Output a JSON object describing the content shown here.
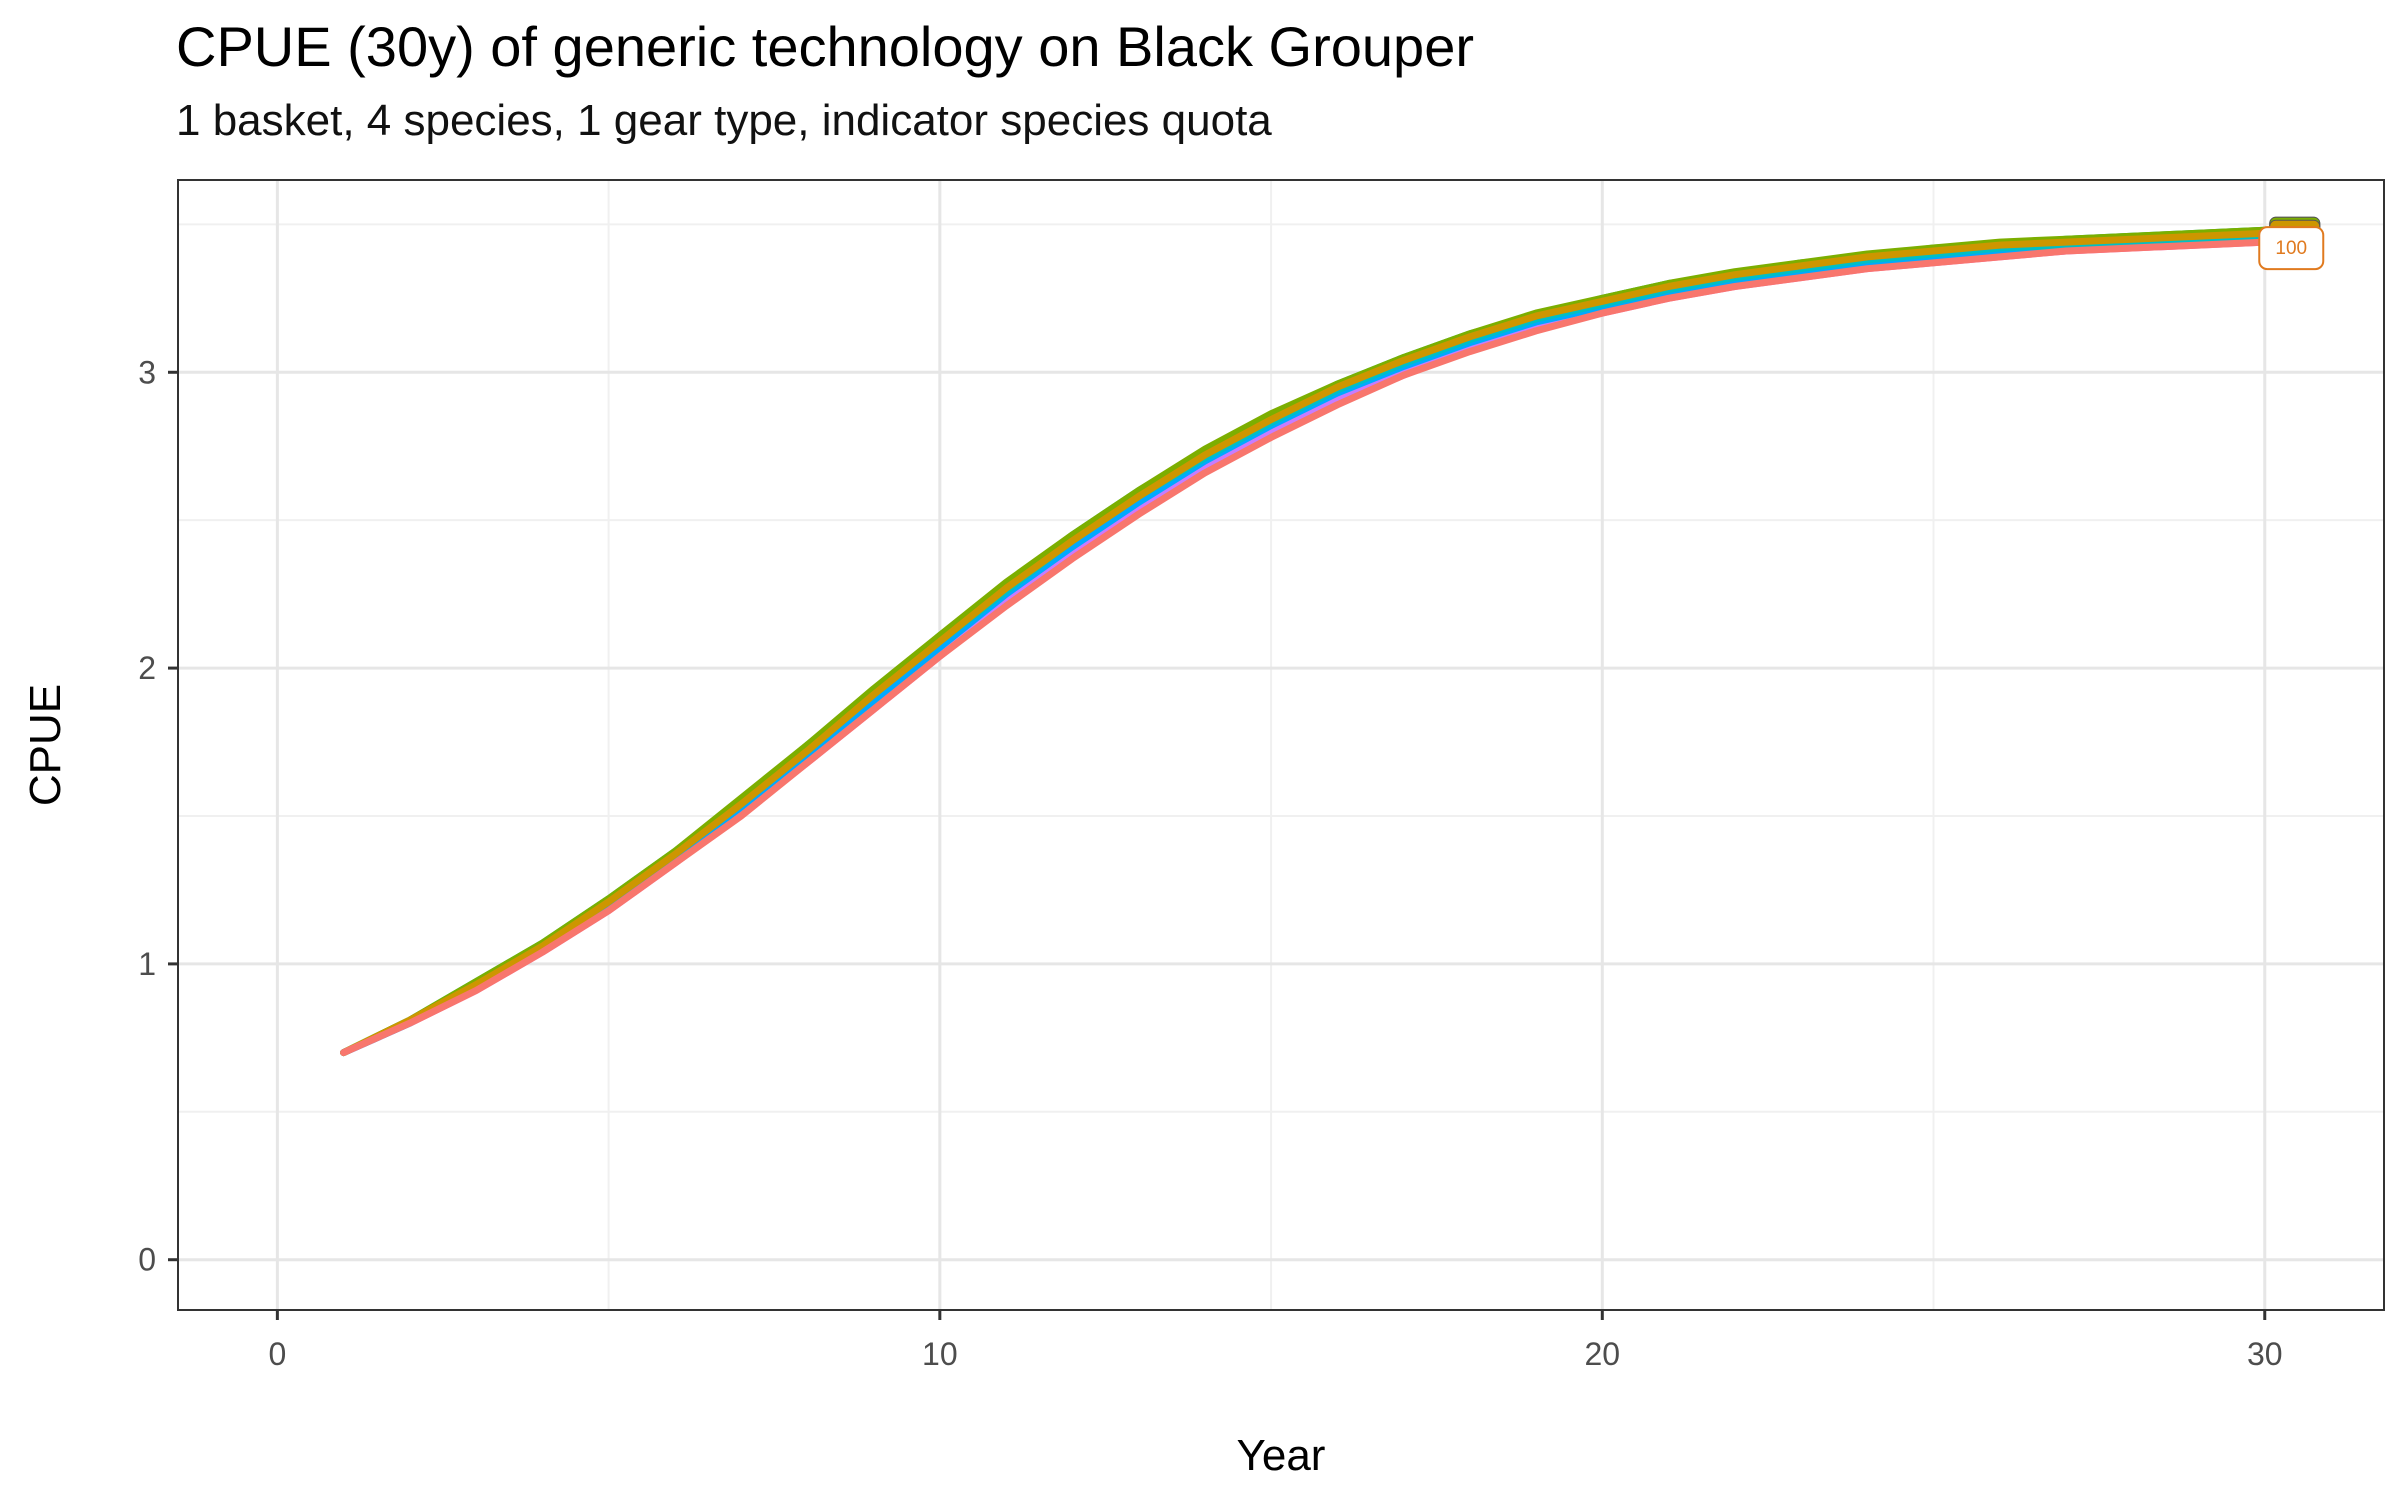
{
  "chart_data": {
    "type": "line",
    "title": "CPUE (30y) of generic technology on Black Grouper",
    "subtitle": "1 basket, 4 species, 1 gear type, indicator species quota",
    "xlabel": "Year",
    "ylabel": "CPUE",
    "xlim": [
      -1.5,
      31.8
    ],
    "ylim": [
      -0.17,
      3.65
    ],
    "xticks": [
      0,
      10,
      20,
      30
    ],
    "yticks": [
      0,
      1,
      2,
      3
    ],
    "y_minor_gridlines": [
      0.5,
      1.5,
      2.5,
      3.5
    ],
    "x_minor_gridlines": [
      5,
      15,
      25
    ],
    "grid": true,
    "legend": "none",
    "x": [
      1,
      2,
      3,
      4,
      5,
      6,
      7,
      8,
      9,
      10,
      11,
      12,
      13,
      14,
      15,
      16,
      17,
      18,
      19,
      20,
      21,
      22,
      23,
      24,
      25,
      26,
      27,
      28,
      29,
      30
    ],
    "series": [
      {
        "color": "#F8766D",
        "values": [
          0.7,
          0.8,
          0.91,
          1.04,
          1.18,
          1.34,
          1.5,
          1.68,
          1.86,
          2.04,
          2.21,
          2.37,
          2.52,
          2.66,
          2.78,
          2.89,
          2.99,
          3.07,
          3.14,
          3.2,
          3.25,
          3.29,
          3.32,
          3.35,
          3.37,
          3.39,
          3.41,
          3.42,
          3.43,
          3.44
        ]
      },
      {
        "color": "#CD9600",
        "values": [
          0.7,
          0.81,
          0.93,
          1.06,
          1.21,
          1.37,
          1.54,
          1.72,
          1.91,
          2.09,
          2.27,
          2.43,
          2.58,
          2.72,
          2.84,
          2.95,
          3.04,
          3.12,
          3.19,
          3.24,
          3.29,
          3.33,
          3.36,
          3.39,
          3.41,
          3.43,
          3.44,
          3.45,
          3.46,
          3.47
        ]
      },
      {
        "color": "#7CAE00",
        "values": [
          0.7,
          0.81,
          0.94,
          1.07,
          1.22,
          1.38,
          1.56,
          1.74,
          1.93,
          2.11,
          2.29,
          2.45,
          2.6,
          2.74,
          2.86,
          2.96,
          3.05,
          3.13,
          3.2,
          3.25,
          3.3,
          3.34,
          3.37,
          3.4,
          3.42,
          3.44,
          3.45,
          3.46,
          3.47,
          3.48
        ]
      },
      {
        "color": "#00BE67",
        "values": [
          0.7,
          0.81,
          0.94,
          1.07,
          1.22,
          1.38,
          1.55,
          1.74,
          1.92,
          2.11,
          2.28,
          2.45,
          2.6,
          2.73,
          2.85,
          2.96,
          3.05,
          3.13,
          3.19,
          3.25,
          3.3,
          3.33,
          3.37,
          3.39,
          3.42,
          3.43,
          3.45,
          3.46,
          3.47,
          3.48
        ]
      },
      {
        "color": "#00BFC4",
        "values": [
          0.7,
          0.81,
          0.93,
          1.06,
          1.21,
          1.37,
          1.54,
          1.72,
          1.91,
          2.09,
          2.26,
          2.43,
          2.58,
          2.71,
          2.83,
          2.94,
          3.03,
          3.11,
          3.18,
          3.23,
          3.28,
          3.32,
          3.35,
          3.38,
          3.4,
          3.42,
          3.43,
          3.44,
          3.45,
          3.46
        ]
      },
      {
        "color": "#00A9FF",
        "values": [
          0.7,
          0.8,
          0.92,
          1.05,
          1.2,
          1.36,
          1.53,
          1.71,
          1.89,
          2.07,
          2.25,
          2.41,
          2.56,
          2.7,
          2.82,
          2.93,
          3.02,
          3.1,
          3.17,
          3.22,
          3.27,
          3.31,
          3.34,
          3.37,
          3.39,
          3.41,
          3.42,
          3.43,
          3.44,
          3.45
        ]
      },
      {
        "color": "#C77CFF",
        "values": [
          0.7,
          0.8,
          0.92,
          1.05,
          1.19,
          1.35,
          1.52,
          1.7,
          1.88,
          2.06,
          2.23,
          2.4,
          2.55,
          2.68,
          2.8,
          2.91,
          3.01,
          3.09,
          3.16,
          3.21,
          3.26,
          3.3,
          3.33,
          3.36,
          3.38,
          3.4,
          3.41,
          3.43,
          3.44,
          3.44
        ]
      },
      {
        "color": "#FF61CC",
        "values": [
          0.7,
          0.8,
          0.91,
          1.04,
          1.18,
          1.34,
          1.51,
          1.68,
          1.86,
          2.04,
          2.22,
          2.38,
          2.53,
          2.67,
          2.79,
          2.9,
          2.99,
          3.08,
          3.15,
          3.2,
          3.25,
          3.29,
          3.32,
          3.35,
          3.37,
          3.39,
          3.41,
          3.42,
          3.43,
          3.44
        ]
      }
    ],
    "annotations": [
      {
        "text": "100",
        "x": 30.4,
        "y": 3.43,
        "color": "#E07A1F"
      }
    ]
  }
}
